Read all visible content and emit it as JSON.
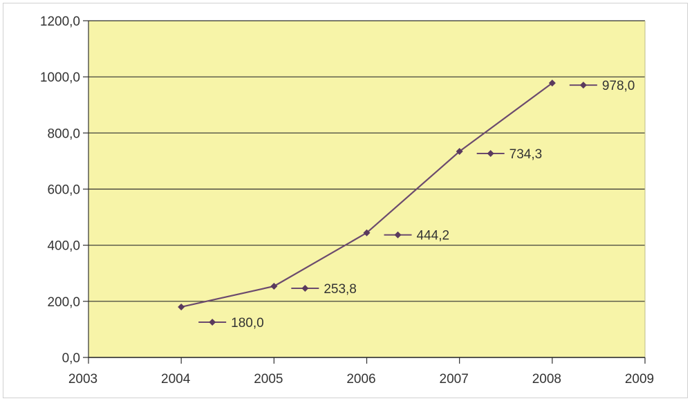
{
  "chart_data": {
    "type": "line",
    "title": "",
    "xlabel": "",
    "ylabel": "",
    "x": [
      2004,
      2005,
      2006,
      2007,
      2008
    ],
    "series": [
      {
        "values": [
          180.0,
          253.8,
          444.2,
          734.3,
          978.0
        ],
        "labels": [
          "180,0",
          "253,8",
          "444,2",
          "734,3",
          "978,0"
        ]
      }
    ],
    "xlim": [
      2003,
      2009
    ],
    "ylim": [
      0,
      1200
    ],
    "x_ticks": [
      "2003",
      "2004",
      "2005",
      "2006",
      "2007",
      "2008",
      "2009"
    ],
    "y_ticks": [
      "0,0",
      "200,0",
      "400,0",
      "600,0",
      "800,0",
      "1000,0",
      "1200,0"
    ],
    "grid": true,
    "legend": "none",
    "colors": {
      "plot_background": "#f7f4a8",
      "line": "#6b4a6e",
      "marker": "#5a3a5e",
      "grid": "#2f2f2f"
    }
  }
}
